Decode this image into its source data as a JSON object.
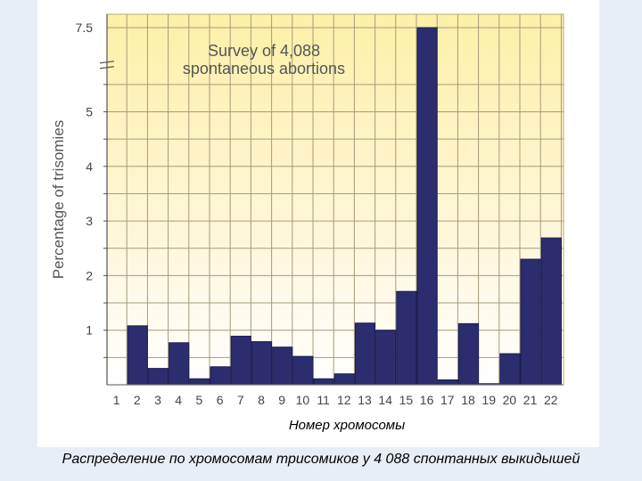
{
  "chart_data": {
    "type": "bar",
    "title": "Survey of 4,088",
    "subtitle": "spontaneous abortions",
    "xlabel": "Номер хромосомы",
    "ylabel": "Percentage of trisomies",
    "categories": [
      "1",
      "2",
      "3",
      "4",
      "5",
      "6",
      "7",
      "8",
      "9",
      "10",
      "11",
      "12",
      "13",
      "14",
      "15",
      "16",
      "17",
      "18",
      "19",
      "20",
      "21",
      "22"
    ],
    "values": [
      0,
      1.08,
      0.3,
      0.77,
      0.11,
      0.33,
      0.89,
      0.79,
      0.69,
      0.52,
      0.11,
      0.2,
      1.13,
      1.0,
      1.71,
      7.5,
      0.09,
      1.12,
      0.02,
      0.57,
      2.3,
      2.69
    ],
    "yticks": [
      "1",
      "2",
      "3",
      "4",
      "5",
      "7.5"
    ],
    "ylim": [
      0,
      7.5
    ],
    "axis_break": true,
    "grid": true,
    "colors": {
      "bar": "#2b2d6e",
      "grid": "#a89a7a",
      "bg_top": "#fdf0a8",
      "bg_bottom": "#ffffff"
    }
  },
  "caption": "Распределение по хромосомам трисомиков у 4 088  спонтанных выкидышей"
}
